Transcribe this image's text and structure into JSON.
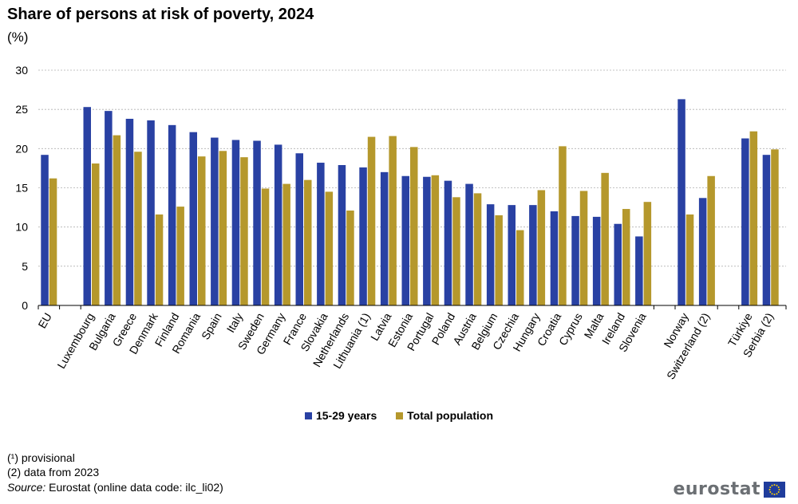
{
  "header": {
    "title": "Share of persons at risk of poverty, 2024",
    "unit": "(%)"
  },
  "chart_data": {
    "type": "bar",
    "ylim": [
      0,
      30
    ],
    "yticks": [
      0,
      5,
      10,
      15,
      20,
      25,
      30
    ],
    "grid": true,
    "legend_position": "bottom-center",
    "groups": [
      {
        "categories": [
          "EU"
        ]
      },
      {
        "categories": [
          "Luxembourg",
          "Bulgaria",
          "Greece",
          "Denmark",
          "Finland",
          "Romania",
          "Spain",
          "Italy",
          "Sweden",
          "Germany",
          "France",
          "Slovakia",
          "Netherlands",
          "Lithuania (1)",
          "Latvia",
          "Estonia",
          "Portugal",
          "Poland",
          "Austria",
          "Belgium",
          "Czechia",
          "Hungary",
          "Croatia",
          "Cyprus",
          "Malta",
          "Ireland",
          "Slovenia"
        ]
      },
      {
        "categories": [
          "Norway",
          "Switzerland (2)"
        ]
      },
      {
        "categories": [
          "Türkiye",
          "Serbia (2)"
        ]
      }
    ],
    "series": [
      {
        "name": "15-29 years",
        "color": "#2941a3",
        "values": [
          19.2,
          25.3,
          24.8,
          23.8,
          23.6,
          23.0,
          22.1,
          21.4,
          21.1,
          21.0,
          20.5,
          19.4,
          18.2,
          17.9,
          17.6,
          17.0,
          16.5,
          16.4,
          15.9,
          15.5,
          12.9,
          12.8,
          12.8,
          12.0,
          11.4,
          11.3,
          10.4,
          8.8,
          26.3,
          13.7,
          21.3,
          19.2
        ]
      },
      {
        "name": "Total population",
        "color": "#b5982c",
        "values": [
          16.2,
          18.1,
          21.7,
          19.6,
          11.6,
          12.6,
          19.0,
          19.7,
          18.9,
          14.9,
          15.5,
          16.0,
          14.5,
          12.1,
          21.5,
          21.6,
          20.2,
          16.6,
          13.8,
          14.3,
          11.5,
          9.6,
          14.7,
          20.3,
          14.6,
          16.9,
          12.3,
          13.2,
          11.6,
          16.5,
          22.2,
          19.9
        ]
      }
    ]
  },
  "footnotes": {
    "note1": "(¹) provisional",
    "note2": "(2) data from 2023",
    "source_label": "Source:",
    "source_text": " Eurostat (online data code: ilc_li02)"
  },
  "branding": {
    "logo_text": "eurostat"
  }
}
